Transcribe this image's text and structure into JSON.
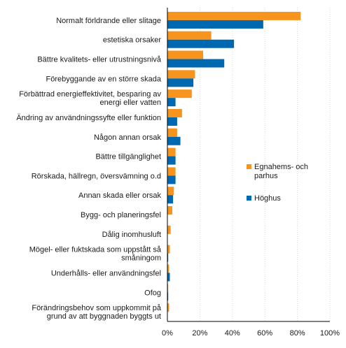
{
  "chart_data": {
    "type": "bar",
    "orientation": "horizontal",
    "categories": [
      "Normalt förldrande eller slitage",
      "estetiska orsaker",
      "Bättre kvalitets- eller utrustningsnivå",
      "Förebyggande av en större skada",
      "Förbättrad energieffektivitet, besparing av energi eller vatten",
      "Ändring av användningssyfte eller funktion",
      "Någon annan orsak",
      "Bättre tillgänglighet",
      "Rörskada, hällregn, översvämning o.d",
      "Annan skada eller orsak",
      "Bygg- och planeringsfel",
      "Dålig inomhusluft",
      "Mögel- eller fuktskada som uppstått så småningom",
      "Underhålls- eller användningsfel",
      "Ofog",
      "Förändringsbehov som uppkommit på grund av att byggnaden byggts ut"
    ],
    "category_lines": [
      [
        "Normalt förldrande eller slitage"
      ],
      [
        "estetiska orsaker"
      ],
      [
        "Bättre kvalitets- eller utrustningsnivå"
      ],
      [
        "Förebyggande av en större skada"
      ],
      [
        "Förbättrad energieffektivitet, besparing av",
        "energi eller vatten"
      ],
      [
        "Ändring av användningssyfte eller funktion"
      ],
      [
        "Någon annan orsak"
      ],
      [
        "Bättre tillgänglighet"
      ],
      [
        "Rörskada, hällregn, översvämning o.d"
      ],
      [
        "Annan skada eller orsak"
      ],
      [
        "Bygg- och planeringsfel"
      ],
      [
        "Dålig inomhusluft"
      ],
      [
        "Mögel- eller fuktskada som uppstått så",
        "småningom"
      ],
      [
        "Underhålls- eller användningsfel"
      ],
      [
        "Ofog"
      ],
      [
        "Förändringsbehov som uppkommit på",
        "grund av att byggnaden byggts ut"
      ]
    ],
    "series": [
      {
        "name": "Egnahems- och parhus",
        "name_lines": [
          "Egnahems- och",
          "parhus"
        ],
        "color": "#f7941d",
        "values": [
          82,
          27,
          22,
          17,
          15,
          9,
          6,
          5,
          5,
          4,
          3,
          2,
          1.5,
          1,
          0.5,
          1
        ]
      },
      {
        "name": "Höghus",
        "name_lines": [
          "Höghus"
        ],
        "color": "#0067b1",
        "values": [
          59,
          41,
          35,
          16,
          5,
          6,
          8,
          5,
          5,
          3.5,
          0,
          0,
          0.5,
          1.5,
          0.5,
          0
        ]
      }
    ],
    "x_ticks": [
      "0%",
      "20%",
      "40%",
      "60%",
      "80%",
      "100%"
    ],
    "xlim": [
      0,
      100
    ],
    "grid": true,
    "legend_position": "right"
  }
}
